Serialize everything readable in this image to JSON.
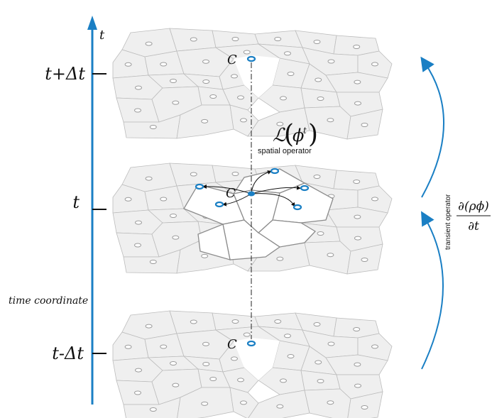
{
  "axis": {
    "name": "t",
    "ticks": [
      "t+Δt",
      "t",
      "t-Δt"
    ],
    "caption": "time coordinate",
    "color": "#1a7fc4"
  },
  "layers": {
    "cell_label": "C"
  },
  "spatial_operator": {
    "symbol": "ℒ",
    "argument": "ϕ",
    "superscript": "t",
    "caption": "spatial operator"
  },
  "transient_operator": {
    "caption": "transient operator",
    "numerator": "∂(ρϕ)",
    "denominator": "∂t"
  },
  "colors": {
    "cell_fill": "#efefef",
    "cell_stroke": "#bcbcbc",
    "centroid": "#999999",
    "highlight": "#1a7fc4"
  }
}
